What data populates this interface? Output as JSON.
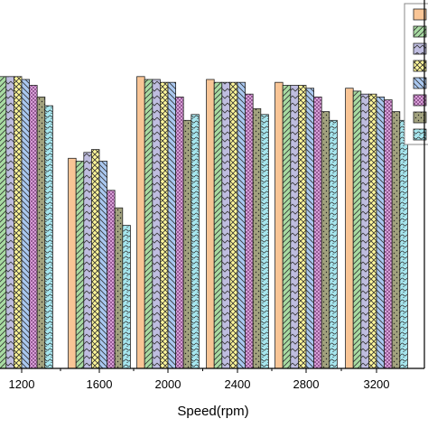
{
  "chart_data": {
    "type": "bar",
    "title": "",
    "xlabel": "Speed(rpm)",
    "ylabel": "",
    "categories": [
      "1200",
      "1600",
      "2000",
      "2400",
      "2800",
      "3200"
    ],
    "ylim": [
      0,
      100
    ],
    "grid": false,
    "legend_position": "top-right",
    "series": [
      {
        "values": [
          100,
          72,
          100,
          99,
          98,
          96
        ],
        "color": "#f9c596",
        "pattern": "none"
      },
      {
        "values": [
          100,
          71,
          99,
          98,
          97,
          95
        ],
        "color": "#a8dba2",
        "pattern": "diag-fwd"
      },
      {
        "values": [
          100,
          74,
          99,
          98,
          97,
          94
        ],
        "color": "#bfbde0",
        "pattern": "chevron"
      },
      {
        "values": [
          100,
          75,
          98,
          98,
          97,
          94
        ],
        "color": "#fff79a",
        "pattern": "cross"
      },
      {
        "values": [
          99,
          71,
          98,
          98,
          96,
          93
        ],
        "color": "#aac8f0",
        "pattern": "diag-back"
      },
      {
        "values": [
          97,
          61,
          93,
          94,
          93,
          92
        ],
        "color": "#d8a0d8",
        "pattern": "check"
      },
      {
        "values": [
          93,
          55,
          85,
          89,
          88,
          88
        ],
        "color": "#a2a27e",
        "pattern": "dots"
      },
      {
        "values": [
          90,
          49,
          87,
          87,
          85,
          85
        ],
        "color": "#a6e6ee",
        "pattern": "bricks"
      }
    ]
  }
}
